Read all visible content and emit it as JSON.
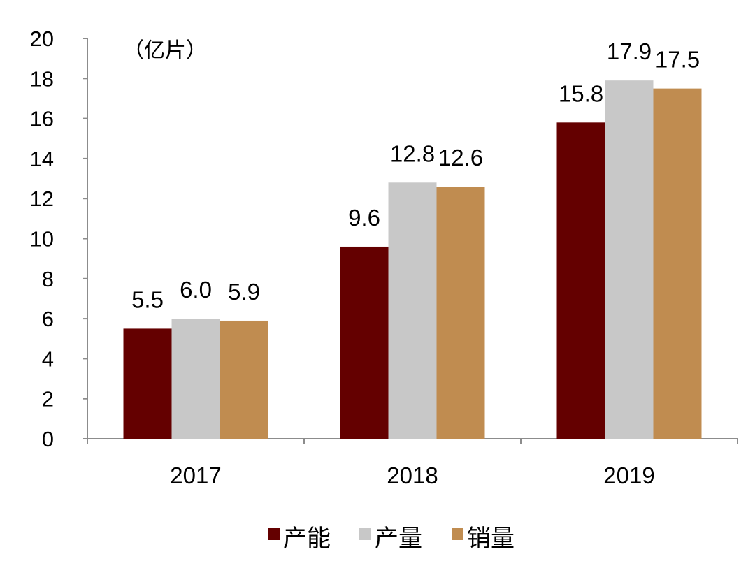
{
  "chart_data": {
    "type": "bar",
    "title": "",
    "xlabel": "",
    "ylabel": "",
    "unit_label": "（亿片）",
    "categories": [
      "2017",
      "2018",
      "2019"
    ],
    "series": [
      {
        "name": "产能",
        "values": [
          5.5,
          9.6,
          15.8
        ],
        "value_labels": [
          "5.5",
          "9.6",
          "15.8"
        ],
        "color": "#640000"
      },
      {
        "name": "产量",
        "values": [
          6.0,
          12.8,
          17.9
        ],
        "value_labels": [
          "6.0",
          "12.8",
          "17.9"
        ],
        "color": "#c8c8c8"
      },
      {
        "name": "销量",
        "values": [
          5.9,
          12.6,
          17.5
        ],
        "value_labels": [
          "5.9",
          "12.6",
          "17.5"
        ],
        "color": "#c08c50"
      }
    ],
    "ylim": [
      0,
      20
    ],
    "yticks": [
      "0",
      "2",
      "4",
      "6",
      "8",
      "10",
      "12",
      "14",
      "16",
      "18",
      "20"
    ],
    "grid": false,
    "legend": "bottom"
  }
}
